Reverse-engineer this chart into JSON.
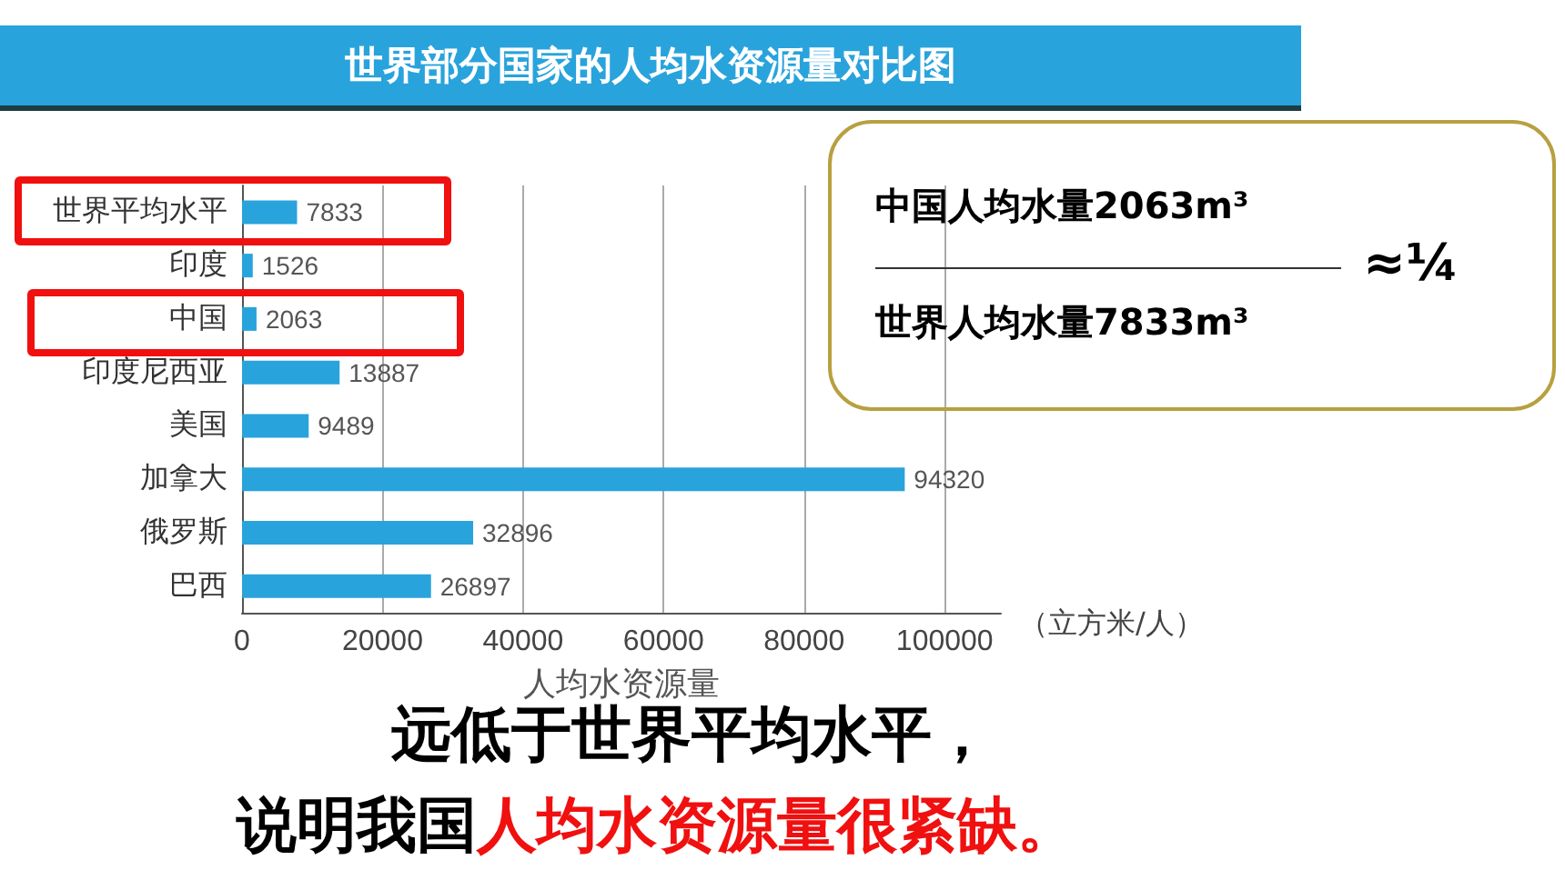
{
  "chart_data": {
    "type": "bar",
    "orientation": "horizontal",
    "title": "世界部分国家的人均水资源量对比图",
    "xlabel": "人均水资源量",
    "categories": [
      "世界平均水平",
      "印度",
      "中国",
      "印度尼西亚",
      "美国",
      "加拿大",
      "俄罗斯",
      "巴西"
    ],
    "values": [
      7833,
      1526,
      2063,
      13887,
      9489,
      94320,
      32896,
      26897
    ],
    "color": "#29a3dc",
    "xlim": [
      0,
      108000
    ],
    "xticks": [
      0,
      20000,
      40000,
      60000,
      80000,
      100000
    ],
    "grid": "x",
    "data_labels": true,
    "annotations": [
      "（立方米/人）",
      "中国人均水量2063m³",
      "世界人均水量7833m³",
      "≈¼",
      "远低于世界平均水平，",
      "说明我国",
      "人均水资源量很紧缺。"
    ]
  }
}
